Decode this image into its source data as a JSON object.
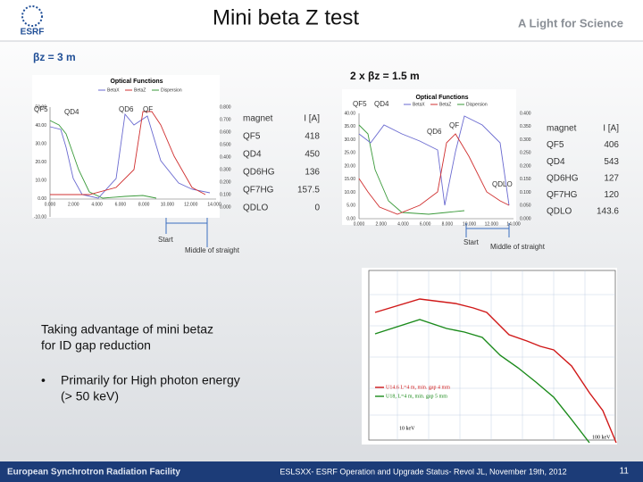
{
  "header": {
    "logo": "ESRF",
    "title": "Mini beta Z test",
    "tagline": "A Light for Science"
  },
  "left_panel": {
    "heading": "βz = 3 m",
    "chart_title": "Optical Functions",
    "legend": [
      "BetaX",
      "BetaZ",
      "Dispersion"
    ],
    "magnet_labels": [
      "QF5",
      "QD4",
      "QD6",
      "QF"
    ],
    "yticks": [
      "50.00",
      "40.00",
      "30.00",
      "20.00",
      "10.00",
      "0.00",
      "-10.00"
    ],
    "y2ticks": [
      "0.800",
      "0.700",
      "0.600",
      "0.500",
      "0.400",
      "0.300",
      "0.200",
      "0.100",
      "0.000"
    ],
    "xticks": [
      "0.000",
      "2.000",
      "4.000",
      "6.000",
      "8.000",
      "10.000",
      "12.000",
      "14.000"
    ],
    "start": "Start",
    "middle": "Middle of straight",
    "table": {
      "header": [
        "magnet",
        "I [A]"
      ],
      "rows": [
        [
          "QF5",
          "418"
        ],
        [
          "QD4",
          "450"
        ],
        [
          "QD6HG",
          "136"
        ],
        [
          "QF7HG",
          "157.5"
        ],
        [
          "QDLO",
          "0"
        ]
      ]
    }
  },
  "right_panel": {
    "heading": "2 x βz = 1.5 m",
    "chart_title": "Optical Functions",
    "legend": [
      "BetaX",
      "BetaZ",
      "Dispersion"
    ],
    "magnet_labels": [
      "QF5",
      "QD4",
      "QD6",
      "QF",
      "QDLO"
    ],
    "yticks": [
      "40.00",
      "35.00",
      "30.00",
      "25.00",
      "20.00",
      "15.00",
      "10.00",
      "5.00",
      "0.00"
    ],
    "y2ticks": [
      "0.400",
      "0.350",
      "0.300",
      "0.250",
      "0.200",
      "0.150",
      "0.100",
      "0.050",
      "0.000"
    ],
    "xticks": [
      "0.000",
      "2.000",
      "4.000",
      "6.000",
      "8.000",
      "10.000",
      "12.000",
      "14.000"
    ],
    "start": "Start",
    "middle": "Middle of straight",
    "table": {
      "header": [
        "magnet",
        "I [A]"
      ],
      "rows": [
        [
          "QF5",
          "406"
        ],
        [
          "QD4",
          "543"
        ],
        [
          "QD6HG",
          "127"
        ],
        [
          "QF7HG",
          "120"
        ],
        [
          "QDLO",
          "143.6"
        ]
      ]
    }
  },
  "body": {
    "text": [
      "Taking advantage of mini betaz",
      "for ID gap reduction"
    ],
    "bullet": [
      "Primarily for High photon energy",
      "(> 50 keV)"
    ]
  },
  "spectrum": {
    "legend": [
      "U14.6 L=4 m, min. gap 4 mm",
      "U18, L=4 m, min. gap 5 mm"
    ],
    "energy_labels": [
      "10 keV",
      "100 keV"
    ]
  },
  "footer": {
    "left": "European Synchrotron Radiation Facility",
    "center": "ESLSXX- ESRF Operation and Upgrade Status- Revol JL, November 19th, 2012",
    "page": "11"
  }
}
